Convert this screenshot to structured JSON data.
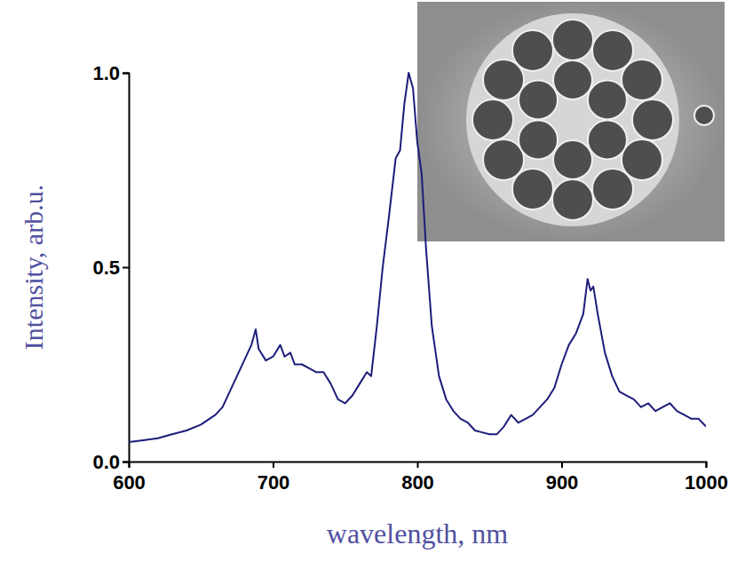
{
  "chart_data": {
    "type": "line",
    "x_label": "wavelength, nm",
    "y_label": "Intensity, arb.u.",
    "color": "#1c1c7a",
    "x": [
      600,
      610,
      620,
      630,
      640,
      650,
      660,
      665,
      670,
      675,
      680,
      685,
      688,
      690,
      695,
      700,
      705,
      708,
      712,
      715,
      720,
      725,
      730,
      735,
      740,
      745,
      750,
      755,
      760,
      765,
      768,
      772,
      776,
      780,
      785,
      788,
      791,
      794,
      797,
      800,
      803,
      806,
      810,
      815,
      820,
      825,
      830,
      835,
      840,
      845,
      850,
      855,
      860,
      865,
      870,
      875,
      880,
      885,
      890,
      895,
      900,
      905,
      910,
      915,
      918,
      920,
      922,
      925,
      930,
      935,
      940,
      945,
      950,
      955,
      960,
      965,
      970,
      975,
      980,
      985,
      990,
      995,
      1000
    ],
    "values": [
      0.05,
      0.055,
      0.06,
      0.07,
      0.08,
      0.095,
      0.12,
      0.14,
      0.18,
      0.22,
      0.26,
      0.3,
      0.34,
      0.29,
      0.26,
      0.27,
      0.3,
      0.27,
      0.28,
      0.25,
      0.25,
      0.24,
      0.23,
      0.23,
      0.2,
      0.16,
      0.15,
      0.17,
      0.2,
      0.23,
      0.22,
      0.35,
      0.5,
      0.62,
      0.78,
      0.8,
      0.92,
      1.0,
      0.96,
      0.82,
      0.74,
      0.55,
      0.35,
      0.22,
      0.16,
      0.13,
      0.11,
      0.1,
      0.08,
      0.075,
      0.07,
      0.07,
      0.09,
      0.12,
      0.1,
      0.11,
      0.12,
      0.14,
      0.16,
      0.19,
      0.25,
      0.3,
      0.33,
      0.38,
      0.47,
      0.44,
      0.45,
      0.38,
      0.28,
      0.22,
      0.18,
      0.17,
      0.16,
      0.14,
      0.15,
      0.13,
      0.14,
      0.15,
      0.13,
      0.12,
      0.11,
      0.11,
      0.09
    ],
    "xlim": [
      600,
      1000
    ],
    "ylim": [
      0,
      1.0
    ],
    "xticks": [
      600,
      700,
      800,
      900,
      1000
    ],
    "yticks": [
      {
        "value": 0,
        "label": "0.0"
      },
      {
        "value": 0.5,
        "label": "0.5"
      },
      {
        "value": 1.0,
        "label": "1.0"
      }
    ]
  }
}
